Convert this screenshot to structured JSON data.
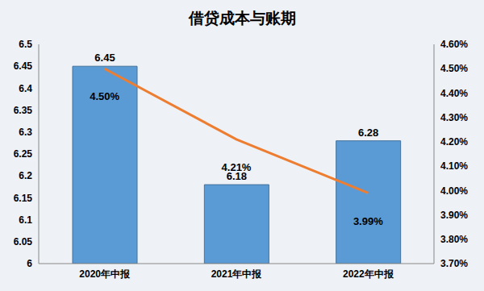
{
  "chart_data": {
    "type": "bar",
    "title": "借贷成本与账期",
    "categories": [
      "2020年中报",
      "2021年中报",
      "2022年中报"
    ],
    "series": [
      {
        "type": "bar",
        "color": "#5b9bd5",
        "values": [
          6.45,
          6.18,
          6.28
        ],
        "data_labels": true
      },
      {
        "type": "line",
        "axis": "y2",
        "color": "#ed7d31",
        "marker": "none",
        "values": [
          4.5,
          4.21,
          3.99
        ],
        "value_labels": [
          "4.50%",
          "4.21%",
          "3.99%"
        ],
        "data_labels": true
      }
    ],
    "ylim": [
      6,
      6.5
    ],
    "yticks": [
      6,
      6.05,
      6.1,
      6.15,
      6.2,
      6.25,
      6.3,
      6.35,
      6.4,
      6.45,
      6.5
    ],
    "y2lim": [
      3.7,
      4.6
    ],
    "y2ticks": [
      {
        "value": 3.7,
        "label": "3.70%"
      },
      {
        "value": 3.8,
        "label": "3.80%"
      },
      {
        "value": 3.9,
        "label": "3.90%"
      },
      {
        "value": 4.0,
        "label": "4.00%"
      },
      {
        "value": 4.1,
        "label": "4.10%"
      },
      {
        "value": 4.2,
        "label": "4.20%"
      },
      {
        "value": 4.3,
        "label": "4.30%"
      },
      {
        "value": 4.4,
        "label": "4.40%"
      },
      {
        "value": 4.5,
        "label": "4.50%"
      },
      {
        "value": 4.6,
        "label": "4.60%"
      }
    ],
    "grid": false
  }
}
